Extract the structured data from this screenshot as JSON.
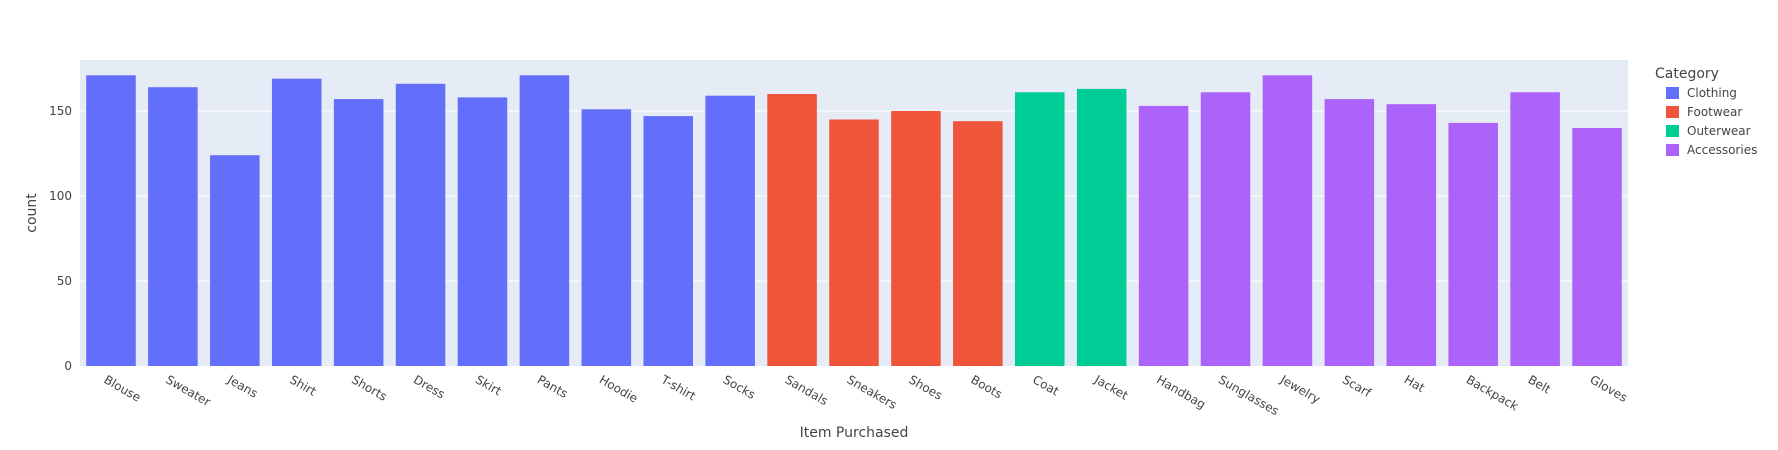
{
  "chart_data": {
    "type": "bar",
    "xlabel": "Item Purchased",
    "ylabel": "count",
    "ylim": [
      0,
      180
    ],
    "yticks": [
      0,
      50,
      100,
      150
    ],
    "grid": true,
    "legend": {
      "title": "Category",
      "placement": "right",
      "entries": [
        {
          "name": "Clothing",
          "color": "#636efa"
        },
        {
          "name": "Footwear",
          "color": "#ef553b"
        },
        {
          "name": "Outerwear",
          "color": "#00cc96"
        },
        {
          "name": "Accessories",
          "color": "#ab63fa"
        }
      ]
    },
    "categories": [
      "Blouse",
      "Sweater",
      "Jeans",
      "Shirt",
      "Shorts",
      "Dress",
      "Skirt",
      "Pants",
      "Hoodie",
      "T-shirt",
      "Socks",
      "Sandals",
      "Sneakers",
      "Shoes",
      "Boots",
      "Coat",
      "Jacket",
      "Handbag",
      "Sunglasses",
      "Jewelry",
      "Scarf",
      "Hat",
      "Backpack",
      "Belt",
      "Gloves"
    ],
    "values": [
      171,
      164,
      124,
      169,
      157,
      166,
      158,
      171,
      151,
      147,
      159,
      160,
      145,
      150,
      144,
      161,
      163,
      153,
      161,
      171,
      157,
      154,
      143,
      161,
      140
    ],
    "groups": [
      "Clothing",
      "Clothing",
      "Clothing",
      "Clothing",
      "Clothing",
      "Clothing",
      "Clothing",
      "Clothing",
      "Clothing",
      "Clothing",
      "Clothing",
      "Footwear",
      "Footwear",
      "Footwear",
      "Footwear",
      "Outerwear",
      "Outerwear",
      "Accessories",
      "Accessories",
      "Accessories",
      "Accessories",
      "Accessories",
      "Accessories",
      "Accessories",
      "Accessories"
    ]
  },
  "colors": {
    "plot_background": "#e5ecf6",
    "gridline": "#ffffff",
    "text": "#444444"
  }
}
